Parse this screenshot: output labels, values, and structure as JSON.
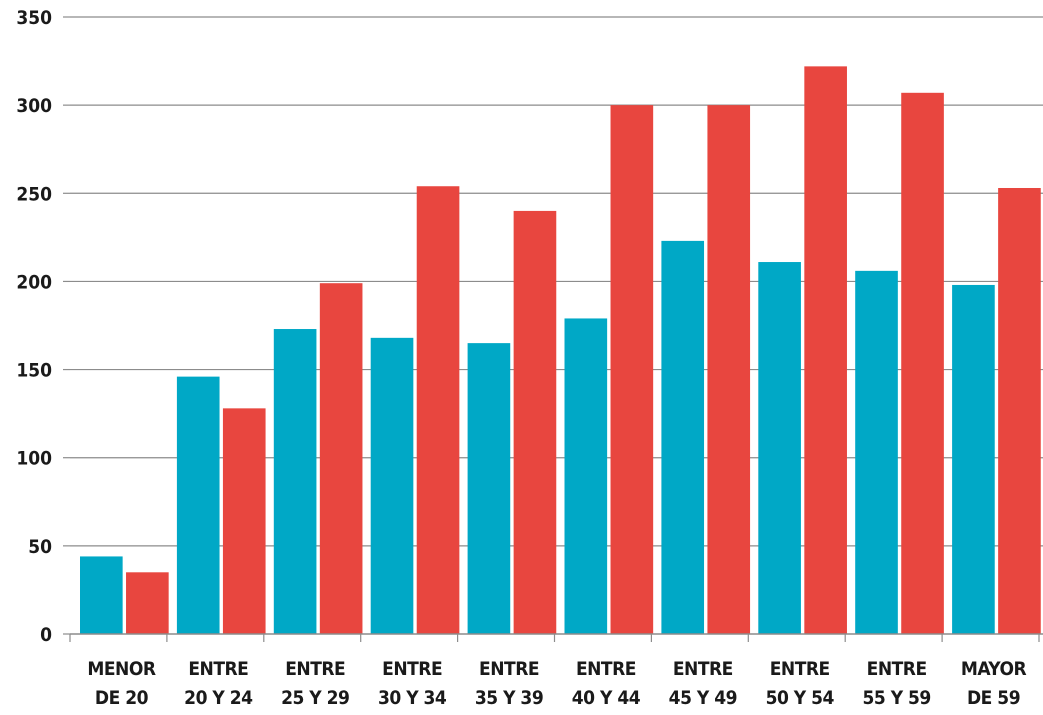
{
  "chart_data": {
    "type": "bar",
    "title": "",
    "xlabel": "",
    "ylabel": "",
    "ylim": [
      0,
      350
    ],
    "yticks": [
      0,
      50,
      100,
      150,
      200,
      250,
      300,
      350
    ],
    "grid": true,
    "categories": [
      [
        "MENOR",
        "DE 20"
      ],
      [
        "ENTRE",
        "20 Y 24"
      ],
      [
        "ENTRE",
        "25 Y 29"
      ],
      [
        "ENTRE",
        "30 Y 34"
      ],
      [
        "ENTRE",
        "35 Y 39"
      ],
      [
        "ENTRE",
        "40 Y 44"
      ],
      [
        "ENTRE",
        "45 Y 49"
      ],
      [
        "ENTRE",
        "50 Y 54"
      ],
      [
        "ENTRE",
        "55 Y 59"
      ],
      [
        "MAYOR",
        "DE 59"
      ]
    ],
    "series": [
      {
        "color": "#00a8c6",
        "values": [
          44,
          146,
          173,
          168,
          165,
          179,
          223,
          211,
          206,
          198
        ]
      },
      {
        "color": "#e8463f",
        "values": [
          35,
          128,
          199,
          254,
          240,
          300,
          300,
          322,
          307,
          253
        ]
      }
    ]
  }
}
